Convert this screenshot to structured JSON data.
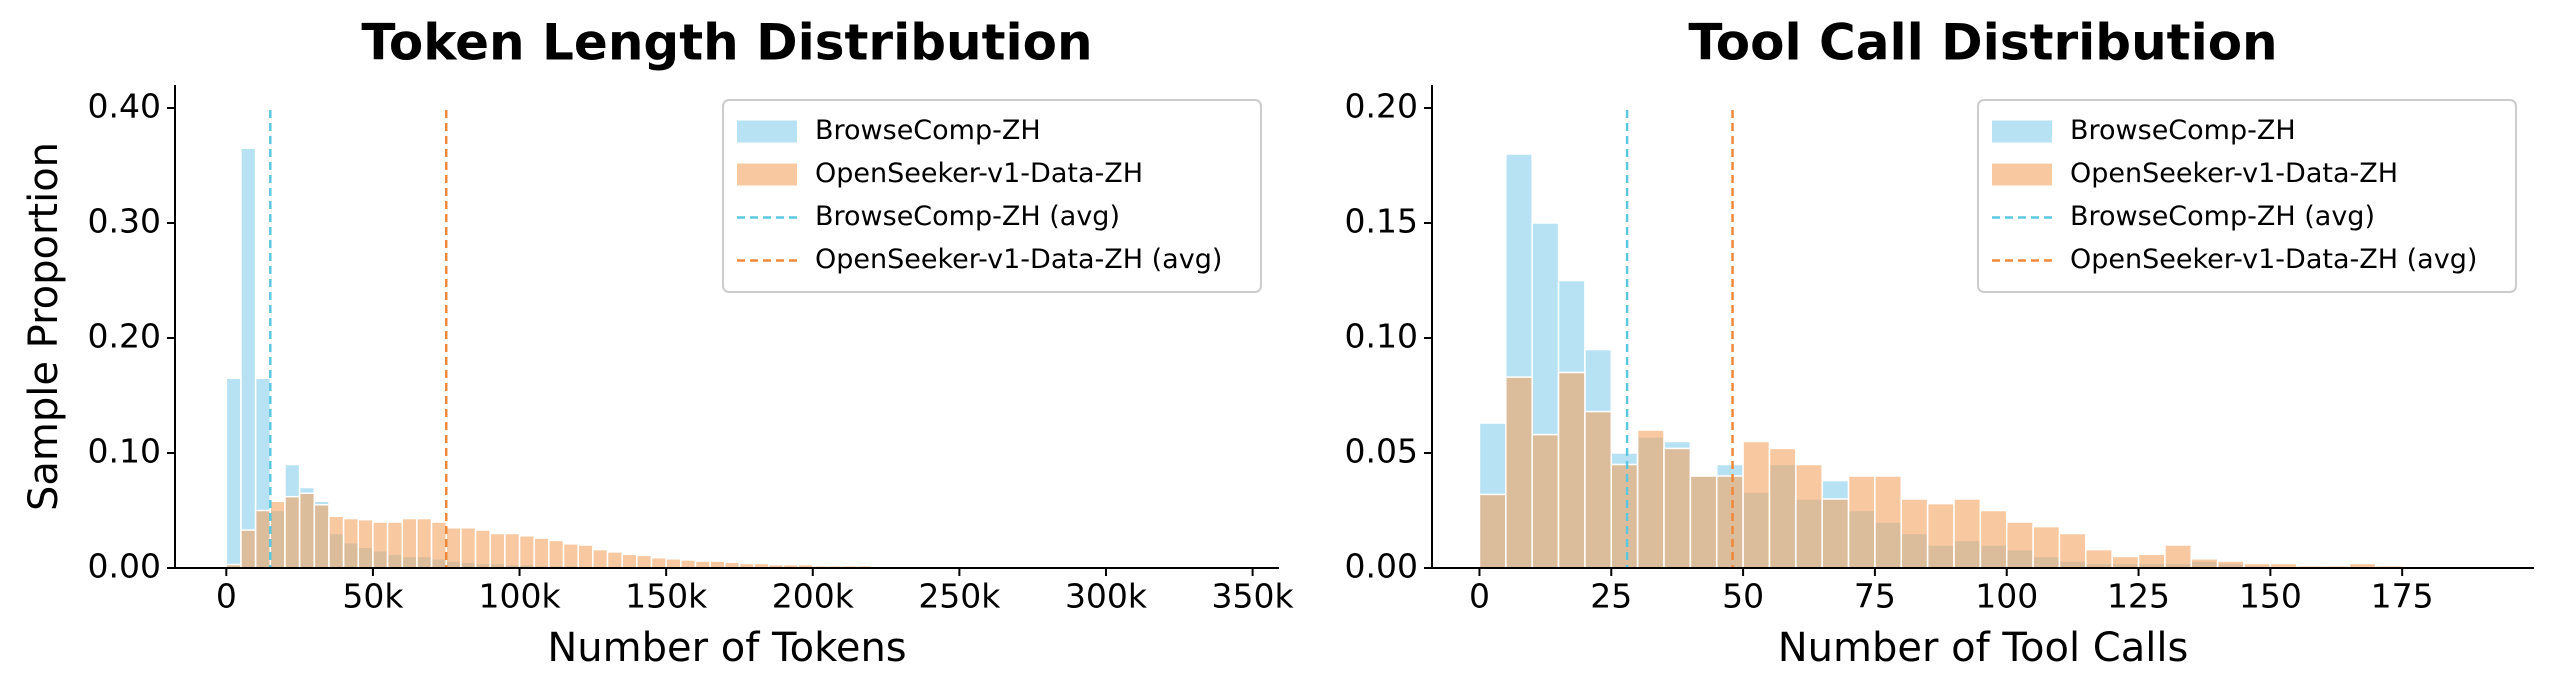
{
  "chart_data": [
    {
      "type": "histogram",
      "title": "Token Length Distribution",
      "x_label": "Number of Tokens",
      "y_label": "Sample Proportion",
      "bins": [
        0,
        5000,
        10000,
        15000,
        20000,
        25000,
        30000,
        35000,
        40000,
        45000,
        50000,
        55000,
        60000,
        65000,
        70000,
        75000,
        80000,
        85000,
        90000,
        95000,
        100000,
        105000,
        110000,
        115000,
        120000,
        125000,
        130000,
        135000,
        140000,
        145000,
        150000,
        155000,
        160000,
        165000,
        170000,
        175000,
        180000,
        185000,
        190000,
        195000,
        200000,
        205000,
        210000,
        215000,
        220000,
        225000,
        230000,
        235000,
        240000,
        245000,
        250000,
        255000,
        260000,
        265000,
        270000,
        275000,
        280000,
        285000,
        290000,
        295000,
        300000,
        305000,
        310000,
        315000,
        320000,
        325000,
        330000,
        335000,
        340000,
        345000,
        350000
      ],
      "series": [
        {
          "name": "BrowseComp-ZH",
          "color": "#87ceeb",
          "values": [
            0.165,
            0.365,
            0.165,
            0.05,
            0.09,
            0.07,
            0.058,
            0.03,
            0.022,
            0.018,
            0.015,
            0.012,
            0.01,
            0.01,
            0.008,
            0.006,
            0.005,
            0.004,
            0.004,
            0.003,
            0.003,
            0.002,
            0.002,
            0.002,
            0.001,
            0.001,
            0.001,
            0.001,
            0.001,
            0.001,
            0,
            0,
            0,
            0,
            0,
            0,
            0,
            0,
            0,
            0,
            0,
            0,
            0,
            0,
            0,
            0,
            0,
            0,
            0,
            0,
            0,
            0,
            0,
            0,
            0,
            0,
            0,
            0,
            0,
            0,
            0,
            0,
            0,
            0,
            0,
            0,
            0,
            0,
            0,
            0
          ]
        },
        {
          "name": "OpenSeeker-v1-Data-ZH",
          "color": "#f4a460",
          "values": [
            0.003,
            0.033,
            0.05,
            0.058,
            0.062,
            0.065,
            0.055,
            0.045,
            0.043,
            0.042,
            0.04,
            0.04,
            0.043,
            0.043,
            0.04,
            0.035,
            0.035,
            0.033,
            0.03,
            0.03,
            0.028,
            0.026,
            0.024,
            0.021,
            0.02,
            0.016,
            0.014,
            0.012,
            0.011,
            0.009,
            0.008,
            0.007,
            0.006,
            0.006,
            0.005,
            0.004,
            0.004,
            0.003,
            0.003,
            0.003,
            0.002,
            0.002,
            0.002,
            0.002,
            0.001,
            0.001,
            0.001,
            0.001,
            0.001,
            0.001,
            0.001,
            0.001,
            0.001,
            0.001,
            0.001,
            0.001,
            0.001,
            0.001,
            0,
            0,
            0,
            0,
            0,
            0,
            0,
            0,
            0,
            0,
            0,
            0
          ]
        }
      ],
      "avg_lines": [
        {
          "name": "BrowseComp-ZH (avg)",
          "color": "#5bc8e0",
          "value": 15000
        },
        {
          "name": "OpenSeeker-v1-Data-ZH (avg)",
          "color": "#f0883a",
          "value": 75000
        }
      ],
      "xlim": [
        -17500,
        359000
      ],
      "ylim": [
        0,
        0.42
      ],
      "xticks": [
        0,
        {
          "value": 50000,
          "label": "50k"
        },
        {
          "value": 100000,
          "label": "100k"
        },
        {
          "value": 150000,
          "label": "150k"
        },
        {
          "value": 200000,
          "label": "200k"
        },
        {
          "value": 250000,
          "label": "250k"
        },
        {
          "value": 300000,
          "label": "300k"
        },
        {
          "value": 350000,
          "label": "350k"
        }
      ],
      "yticks": [
        {
          "value": 0,
          "label": "0.00"
        },
        {
          "value": 0.1,
          "label": "0.10"
        },
        {
          "value": 0.2,
          "label": "0.20"
        },
        {
          "value": 0.3,
          "label": "0.30"
        },
        {
          "value": 0.4,
          "label": "0.40"
        }
      ],
      "legend": "upper right"
    },
    {
      "type": "histogram",
      "title": "Tool Call Distribution",
      "x_label": "Number of Tool Calls",
      "bins": [
        0,
        5,
        10,
        15,
        20,
        25,
        30,
        35,
        40,
        45,
        50,
        55,
        60,
        65,
        70,
        75,
        80,
        85,
        90,
        95,
        100,
        105,
        110,
        115,
        120,
        125,
        130,
        135,
        140,
        145,
        150,
        155,
        160,
        165,
        170,
        175,
        180,
        185
      ],
      "series": [
        {
          "name": "BrowseComp-ZH",
          "color": "#87ceeb",
          "values": [
            0.063,
            0.18,
            0.15,
            0.125,
            0.095,
            0.05,
            0.057,
            0.055,
            0.04,
            0.045,
            0.033,
            0.045,
            0.03,
            0.038,
            0.025,
            0.02,
            0.015,
            0.01,
            0.012,
            0.01,
            0.008,
            0.005,
            0.003,
            0.002,
            0.002,
            0.002,
            0.002,
            0.003,
            0.002,
            0.001,
            0,
            0,
            0,
            0,
            0,
            0,
            0
          ]
        },
        {
          "name": "OpenSeeker-v1-Data-ZH",
          "color": "#f4a460",
          "values": [
            0.032,
            0.083,
            0.058,
            0.085,
            0.068,
            0.045,
            0.06,
            0.052,
            0.04,
            0.04,
            0.055,
            0.052,
            0.045,
            0.03,
            0.04,
            0.04,
            0.03,
            0.028,
            0.03,
            0.025,
            0.02,
            0.018,
            0.015,
            0.008,
            0.005,
            0.006,
            0.01,
            0.004,
            0.003,
            0.002,
            0.002,
            0.001,
            0.001,
            0.002,
            0.001,
            0,
            0
          ]
        }
      ],
      "avg_lines": [
        {
          "name": "BrowseComp-ZH (avg)",
          "color": "#5bc8e0",
          "value": 28
        },
        {
          "name": "OpenSeeker-v1-Data-ZH (avg)",
          "color": "#f0883a",
          "value": 48
        }
      ],
      "xlim": [
        -9,
        200
      ],
      "ylim": [
        0,
        0.21
      ],
      "xticks": [
        0,
        25,
        50,
        75,
        100,
        125,
        150,
        175
      ],
      "yticks": [
        {
          "value": 0,
          "label": "0.00"
        },
        {
          "value": 0.05,
          "label": "0.05"
        },
        {
          "value": 0.1,
          "label": "0.10"
        },
        {
          "value": 0.15,
          "label": "0.15"
        },
        {
          "value": 0.2,
          "label": "0.20"
        }
      ],
      "legend": "upper right"
    }
  ]
}
